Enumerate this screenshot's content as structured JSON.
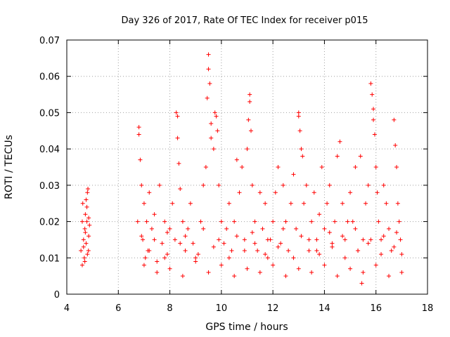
{
  "chart_data": {
    "type": "scatter",
    "title": "Day 326 of 2017, Rate Of TEC Index for receiver p015",
    "xlabel": "GPS time / hours",
    "ylabel": "ROTI / TECUs",
    "xlim": [
      4,
      18
    ],
    "ylim": [
      0,
      0.07
    ],
    "x_ticks": [
      "4",
      "6",
      "8",
      "10",
      "12",
      "14",
      "16",
      "18"
    ],
    "y_ticks": [
      "0",
      "0.01",
      "0.02",
      "0.03",
      "0.04",
      "0.05",
      "0.06",
      "0.07"
    ],
    "grid": true,
    "marker": "+",
    "color": "#ff0000",
    "series": [
      {
        "x": [
          4.55,
          4.6,
          4.62,
          4.65,
          4.68,
          4.7,
          4.72,
          4.75,
          4.78,
          4.8,
          4.82,
          4.85,
          4.6,
          4.7,
          4.75,
          4.8,
          4.85,
          4.88,
          4.65,
          4.72,
          4.78,
          4.84,
          6.75,
          6.8,
          6.8,
          6.85,
          6.9,
          6.95,
          7.0,
          7.05,
          7.1,
          7.15,
          7.2,
          7.3,
          7.4,
          7.5,
          7.6,
          7.7,
          7.8,
          7.9,
          8.0,
          8.1,
          8.2,
          8.25,
          8.3,
          8.3,
          8.35,
          8.4,
          8.5,
          8.6,
          8.7,
          8.8,
          8.9,
          9.0,
          9.2,
          9.3,
          9.4,
          9.45,
          9.5,
          9.5,
          9.55,
          9.6,
          9.6,
          9.7,
          9.75,
          9.8,
          9.85,
          9.9,
          10.0,
          10.1,
          10.2,
          10.3,
          10.4,
          10.5,
          10.6,
          10.7,
          10.8,
          10.9,
          11.0,
          11.05,
          11.1,
          11.1,
          11.15,
          11.2,
          11.3,
          11.4,
          11.5,
          11.6,
          11.7,
          11.8,
          11.9,
          12.0,
          12.1,
          12.2,
          12.3,
          12.4,
          12.5,
          12.6,
          12.7,
          12.8,
          12.9,
          13.0,
          13.0,
          13.05,
          13.1,
          13.15,
          13.2,
          13.3,
          13.4,
          13.5,
          13.6,
          13.7,
          13.8,
          13.9,
          14.0,
          14.1,
          14.2,
          14.3,
          14.4,
          14.5,
          14.6,
          14.7,
          14.8,
          14.9,
          15.0,
          15.1,
          15.2,
          15.3,
          15.4,
          15.45,
          15.5,
          15.6,
          15.7,
          15.8,
          15.85,
          15.9,
          15.9,
          15.95,
          16.0,
          16.05,
          16.1,
          16.2,
          16.3,
          16.4,
          16.5,
          16.6,
          16.7,
          16.75,
          16.8,
          16.85,
          16.9,
          16.95,
          17.0,
          7.0,
          7.5,
          8.0,
          8.5,
          9.0,
          9.5,
          10.0,
          10.5,
          11.0,
          11.5,
          12.0,
          12.5,
          13.0,
          13.5,
          14.0,
          14.5,
          15.0,
          15.5,
          16.0,
          16.5,
          17.0,
          7.2,
          7.8,
          8.4,
          9.1,
          9.7,
          10.3,
          10.9,
          11.3,
          11.7,
          12.2,
          12.8,
          13.4,
          13.8,
          14.3,
          14.8,
          15.3,
          15.7,
          16.2,
          16.7,
          6.9,
          7.4,
          7.9,
          8.6,
          9.3,
          9.9,
          10.6,
          11.2,
          11.8,
          12.4,
          13.1,
          13.7,
          14.2,
          14.7,
          15.2,
          15.8,
          16.3,
          16.8
        ],
        "y": [
          0.012,
          0.02,
          0.025,
          0.015,
          0.01,
          0.018,
          0.022,
          0.014,
          0.02,
          0.028,
          0.029,
          0.016,
          0.008,
          0.009,
          0.026,
          0.011,
          0.021,
          0.019,
          0.013,
          0.017,
          0.024,
          0.012,
          0.02,
          0.046,
          0.044,
          0.037,
          0.03,
          0.015,
          0.025,
          0.01,
          0.02,
          0.012,
          0.028,
          0.018,
          0.022,
          0.009,
          0.03,
          0.014,
          0.02,
          0.011,
          0.018,
          0.025,
          0.015,
          0.05,
          0.049,
          0.043,
          0.036,
          0.029,
          0.02,
          0.012,
          0.018,
          0.025,
          0.014,
          0.01,
          0.02,
          0.03,
          0.035,
          0.054,
          0.066,
          0.062,
          0.058,
          0.047,
          0.043,
          0.04,
          0.05,
          0.049,
          0.045,
          0.03,
          0.02,
          0.014,
          0.018,
          0.025,
          0.012,
          0.02,
          0.037,
          0.028,
          0.035,
          0.015,
          0.04,
          0.048,
          0.055,
          0.053,
          0.045,
          0.03,
          0.02,
          0.012,
          0.028,
          0.018,
          0.025,
          0.01,
          0.015,
          0.02,
          0.028,
          0.035,
          0.014,
          0.03,
          0.02,
          0.012,
          0.025,
          0.033,
          0.018,
          0.05,
          0.049,
          0.045,
          0.04,
          0.038,
          0.025,
          0.03,
          0.015,
          0.02,
          0.028,
          0.012,
          0.022,
          0.035,
          0.018,
          0.025,
          0.03,
          0.014,
          0.02,
          0.038,
          0.042,
          0.025,
          0.015,
          0.02,
          0.028,
          0.02,
          0.035,
          0.012,
          0.038,
          0.003,
          0.015,
          0.025,
          0.03,
          0.058,
          0.055,
          0.051,
          0.048,
          0.044,
          0.035,
          0.028,
          0.02,
          0.015,
          0.03,
          0.025,
          0.018,
          0.012,
          0.048,
          0.041,
          0.035,
          0.025,
          0.02,
          0.015,
          0.011,
          0.008,
          0.006,
          0.007,
          0.005,
          0.009,
          0.006,
          0.008,
          0.005,
          0.007,
          0.006,
          0.008,
          0.005,
          0.007,
          0.006,
          0.008,
          0.005,
          0.007,
          0.006,
          0.008,
          0.005,
          0.006,
          0.012,
          0.01,
          0.014,
          0.011,
          0.013,
          0.01,
          0.012,
          0.014,
          0.011,
          0.013,
          0.01,
          0.012,
          0.011,
          0.013,
          0.01,
          0.012,
          0.014,
          0.011,
          0.013,
          0.016,
          0.015,
          0.017,
          0.016,
          0.018,
          0.015,
          0.016,
          0.017,
          0.015,
          0.018,
          0.016,
          0.015,
          0.017,
          0.016,
          0.018,
          0.015,
          0.016,
          0.017
        ]
      }
    ]
  }
}
